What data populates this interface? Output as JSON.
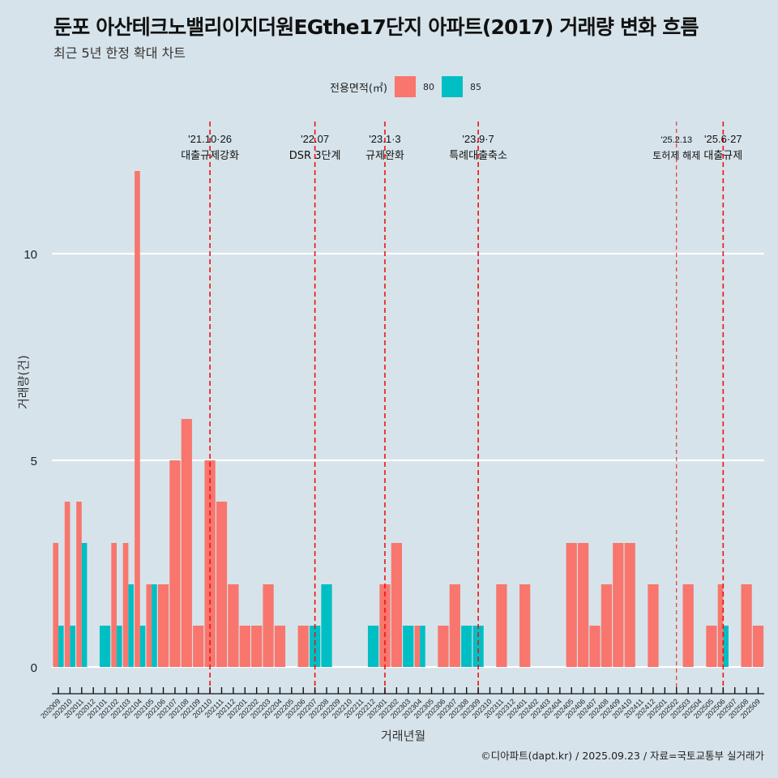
{
  "title": "둔포 아산테크노밸리이지더원EGthe17단지 아파트(2017) 거래량 변화 흐름",
  "subtitle": "최근 5년 한정 확대 차트",
  "caption": "©디아파트(dapt.kr) / 2025.09.23 / 자료=국토교통부 실거래가",
  "colors": {
    "s80": "#f8766d",
    "s85": "#00bfc4",
    "background": "#d6e3ea",
    "grid": "#ffffff",
    "event_line": "#ee1111"
  },
  "chart_data": {
    "type": "bar",
    "title": "둔포 아산테크노밸리이지더원EGthe17단지 아파트(2017) 거래량 변화 흐름",
    "subtitle": "최근 5년 한정 확대 차트",
    "xlabel": "거래년월",
    "ylabel": "거래량(건)",
    "ylim": [
      -0.6,
      12.6
    ],
    "yticks": [
      0,
      5,
      10
    ],
    "grid": "horizontal major",
    "legend": {
      "title": "전용면적(㎡)",
      "position": "top",
      "entries": [
        "80",
        "85"
      ]
    },
    "categories": [
      "202009",
      "202010",
      "202011",
      "202012",
      "202101",
      "202102",
      "202103",
      "202104",
      "202105",
      "202106",
      "202107",
      "202108",
      "202109",
      "202110",
      "202111",
      "202112",
      "202201",
      "202202",
      "202203",
      "202204",
      "202205",
      "202206",
      "202207",
      "202208",
      "202209",
      "202210",
      "202211",
      "202212",
      "202301",
      "202302",
      "202303",
      "202304",
      "202305",
      "202306",
      "202307",
      "202308",
      "202309",
      "202310",
      "202311",
      "202312",
      "202401",
      "202402",
      "202403",
      "202404",
      "202405",
      "202406",
      "202407",
      "202408",
      "202409",
      "202410",
      "202411",
      "202412",
      "202501",
      "202502",
      "202503",
      "202504",
      "202505",
      "202506",
      "202507",
      "202508",
      "202509"
    ],
    "series": [
      {
        "name": "80",
        "values": [
          3,
          4,
          4,
          0,
          0,
          3,
          3,
          12,
          2,
          2,
          5,
          6,
          1,
          5,
          4,
          2,
          1,
          1,
          2,
          1,
          0,
          1,
          0,
          0,
          0,
          0,
          0,
          0,
          2,
          3,
          0,
          1,
          0,
          1,
          2,
          0,
          0,
          0,
          2,
          0,
          2,
          0,
          0,
          0,
          3,
          3,
          1,
          2,
          3,
          3,
          0,
          2,
          0,
          0,
          2,
          0,
          1,
          2,
          0,
          2,
          1
        ]
      },
      {
        "name": "85",
        "values": [
          1,
          1,
          3,
          0,
          1,
          1,
          2,
          1,
          2,
          0,
          0,
          0,
          0,
          0,
          0,
          0,
          0,
          0,
          0,
          0,
          0,
          0,
          1,
          2,
          0,
          0,
          0,
          1,
          0,
          0,
          1,
          1,
          0,
          0,
          0,
          1,
          1,
          0,
          0,
          0,
          0,
          0,
          0,
          0,
          0,
          0,
          0,
          0,
          0,
          0,
          0,
          0,
          0,
          0,
          0,
          0,
          0,
          1,
          0,
          0,
          0
        ]
      }
    ],
    "annotations": [
      {
        "month": "202110",
        "date": "'21.10·26",
        "label": "대출규제강화",
        "style": "dashed"
      },
      {
        "month": "202207",
        "date": "'22.07",
        "label": "DSR 3단계",
        "style": "dashed"
      },
      {
        "month": "202301",
        "date": "'23.1·3",
        "label": "규제완화",
        "style": "dashed"
      },
      {
        "month": "202309",
        "date": "'23.9·7",
        "label": "특례대출축소",
        "style": "dashed"
      },
      {
        "month": "202502",
        "date": "'25.2.13",
        "label": "토허제 해제",
        "style": "thin-dashed"
      },
      {
        "month": "202506",
        "date": "'25.6·27",
        "label": "대출규제",
        "style": "dashed"
      }
    ]
  }
}
